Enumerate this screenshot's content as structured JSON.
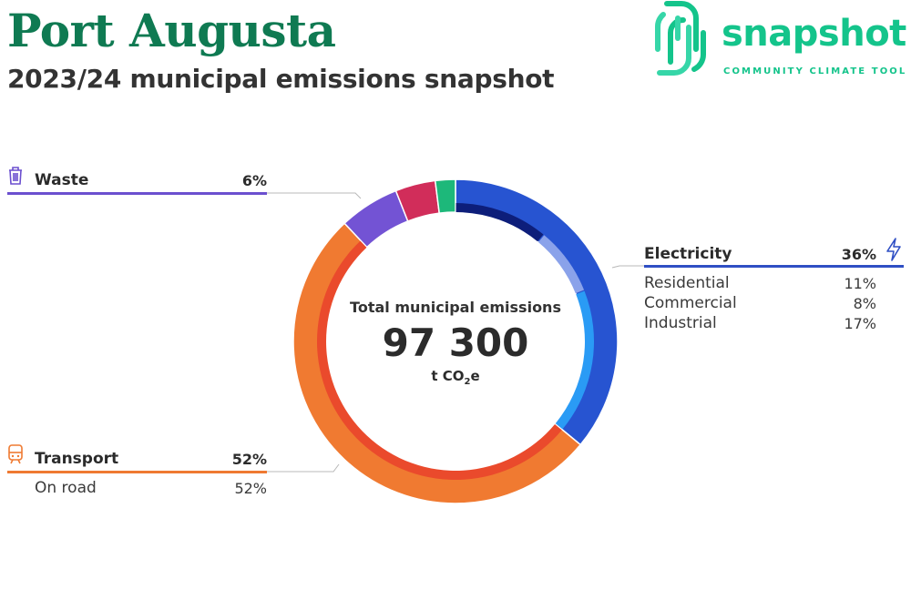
{
  "header": {
    "title": "Port Augusta",
    "subtitle": "2023/24 municipal emissions snapshot"
  },
  "logo": {
    "word": "snapshot",
    "tagline": "COMMUNITY CLIMATE TOOL",
    "color": "#14c48b",
    "icon": "snapshot-logo-icon"
  },
  "center": {
    "label": "Total municipal emissions",
    "value": "97 300",
    "unit_main": "t CO",
    "unit_sub": "2",
    "unit_end": "e"
  },
  "categories": {
    "waste": {
      "name": "Waste",
      "pct": "6%",
      "color": "#6b4fcf",
      "icon": "waste-bin-icon"
    },
    "electricity": {
      "name": "Electricity",
      "pct": "36%",
      "color": "#2f4fc4",
      "icon": "lightning-icon"
    },
    "transport": {
      "name": "Transport",
      "pct": "52%",
      "color": "#ef7a32",
      "icon": "train-icon"
    }
  },
  "electricity_breakdown": [
    {
      "name": "Residential",
      "pct": "11%"
    },
    {
      "name": "Commercial",
      "pct": "8%"
    },
    {
      "name": "Industrial",
      "pct": "17%"
    }
  ],
  "transport_breakdown": [
    {
      "name": "On road",
      "pct": "52%"
    }
  ],
  "chart_data": {
    "type": "pie",
    "style": "donut",
    "total": 97300,
    "unit": "t CO2e",
    "slices": [
      {
        "label": "Electricity",
        "value": 36,
        "color": "#2754d1"
      },
      {
        "label": "Transport",
        "value": 52,
        "color": "#f07a31"
      },
      {
        "label": "Waste",
        "value": 6,
        "color": "#7353d4"
      },
      {
        "label": "",
        "value": 4,
        "color": "#d12d5a"
      },
      {
        "label": "",
        "value": 2,
        "color": "#1db87a"
      }
    ],
    "inner_rings": [
      {
        "parent": "Electricity",
        "label": "Residential",
        "value": 11,
        "color": "#0d1e7a"
      },
      {
        "parent": "Electricity",
        "label": "Commercial",
        "value": 8,
        "color": "#8aa2ea"
      },
      {
        "parent": "Electricity",
        "label": "Industrial",
        "value": 17,
        "color": "#2a9bf5"
      },
      {
        "parent": "Transport",
        "label": "On road",
        "value": 52,
        "color": "#ea4a2c"
      }
    ]
  }
}
